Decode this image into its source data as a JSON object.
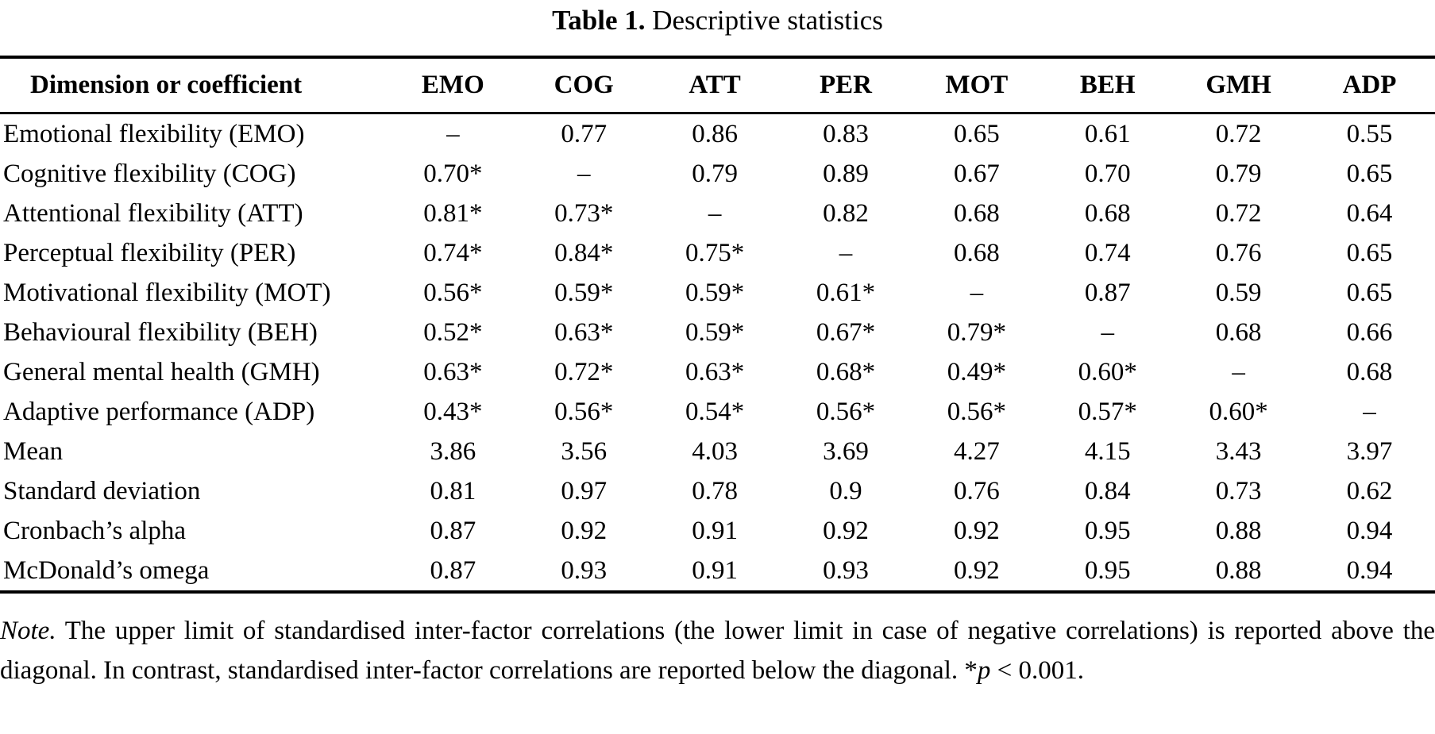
{
  "title": {
    "label": "Table 1.",
    "text": " Descriptive statistics"
  },
  "table": {
    "header": {
      "first": "Dimension or coefficient",
      "columns": [
        "EMO",
        "COG",
        "ATT",
        "PER",
        "MOT",
        "BEH",
        "GMH",
        "ADP"
      ]
    },
    "rows": [
      {
        "label": "Emotional flexibility (EMO)",
        "values": [
          "–",
          "0.77",
          "0.86",
          "0.83",
          "0.65",
          "0.61",
          "0.72",
          "0.55"
        ]
      },
      {
        "label": "Cognitive flexibility (COG)",
        "values": [
          "0.70*",
          "–",
          "0.79",
          "0.89",
          "0.67",
          "0.70",
          "0.79",
          "0.65"
        ]
      },
      {
        "label": "Attentional flexibility (ATT)",
        "values": [
          "0.81*",
          "0.73*",
          "–",
          "0.82",
          "0.68",
          "0.68",
          "0.72",
          "0.64"
        ]
      },
      {
        "label": "Perceptual flexibility (PER)",
        "values": [
          "0.74*",
          "0.84*",
          "0.75*",
          "–",
          "0.68",
          "0.74",
          "0.76",
          "0.65"
        ]
      },
      {
        "label": "Motivational flexibility (MOT)",
        "values": [
          "0.56*",
          "0.59*",
          "0.59*",
          "0.61*",
          "–",
          "0.87",
          "0.59",
          "0.65"
        ]
      },
      {
        "label": "Behavioural flexibility (BEH)",
        "values": [
          "0.52*",
          "0.63*",
          "0.59*",
          "0.67*",
          "0.79*",
          "–",
          "0.68",
          "0.66"
        ]
      },
      {
        "label": "General mental health (GMH)",
        "values": [
          "0.63*",
          "0.72*",
          "0.63*",
          "0.68*",
          "0.49*",
          "0.60*",
          "–",
          "0.68"
        ]
      },
      {
        "label": "Adaptive performance (ADP)",
        "values": [
          "0.43*",
          "0.56*",
          "0.54*",
          "0.56*",
          "0.56*",
          "0.57*",
          "0.60*",
          "–"
        ]
      },
      {
        "label": "Mean",
        "values": [
          "3.86",
          "3.56",
          "4.03",
          "3.69",
          "4.27",
          "4.15",
          "3.43",
          "3.97"
        ]
      },
      {
        "label": "Standard deviation",
        "values": [
          "0.81",
          "0.97",
          "0.78",
          "0.9",
          "0.76",
          "0.84",
          "0.73",
          "0.62"
        ]
      },
      {
        "label": "Cronbach’s alpha",
        "values": [
          "0.87",
          "0.92",
          "0.91",
          "0.92",
          "0.92",
          "0.95",
          "0.88",
          "0.94"
        ]
      },
      {
        "label": "McDonald’s omega",
        "values": [
          "0.87",
          "0.93",
          "0.91",
          "0.93",
          "0.92",
          "0.95",
          "0.88",
          "0.94"
        ]
      }
    ]
  },
  "note": {
    "segments": [
      {
        "text": "Note.",
        "italic": true
      },
      {
        "text": " The upper limit of standardised inter-factor correlations (the lower limit in case of negative correlations) is reported above the diagonal. In contrast, standardised inter-factor correlations are reported below the diagonal. *",
        "italic": false
      },
      {
        "text": "p",
        "italic": true
      },
      {
        "text": " < 0.001.",
        "italic": false
      }
    ]
  }
}
